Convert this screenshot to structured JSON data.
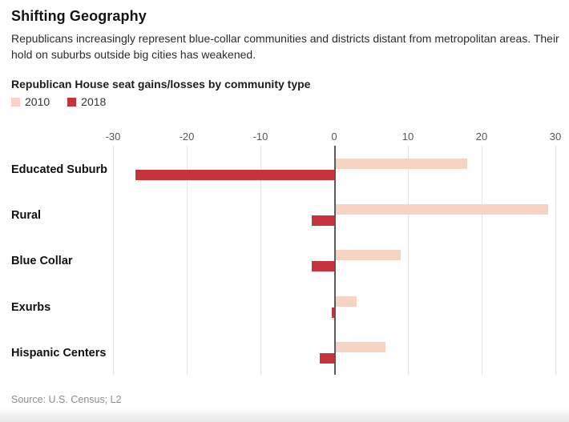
{
  "header": {
    "title": "Shifting Geography",
    "subtitle": "Republicans increasingly represent blue-collar communities and districts distant from metropolitan areas. Their hold on suburbs outside big cities has weakened."
  },
  "source_note": "Source: U.S. Census; L2",
  "colors": {
    "series_2010": "#f6d4c4",
    "series_2018": "#c5333e",
    "gridline": "#e4e4e4",
    "zero_line": "#5a5a5b",
    "tick_label": "#555555"
  },
  "chart_data": {
    "type": "bar",
    "orientation": "horizontal",
    "title": "Republican House seat gains/losses by community type",
    "categories": [
      "Educated Suburb",
      "Rural",
      "Blue Collar",
      "Exurbs",
      "Hispanic Centers"
    ],
    "series": [
      {
        "name": "2010",
        "color": "#f6d4c4",
        "values": [
          18,
          29,
          9,
          3,
          7
        ]
      },
      {
        "name": "2018",
        "color": "#c5333e",
        "values": [
          -27,
          -3,
          -3,
          -0.3,
          -2
        ]
      }
    ],
    "xlabel": "",
    "ylabel": "",
    "xlim": [
      -30,
      30
    ],
    "xticks": [
      -30,
      -20,
      -10,
      0,
      10,
      20,
      30
    ],
    "grid": "vertical",
    "legend_position": "top-left"
  }
}
